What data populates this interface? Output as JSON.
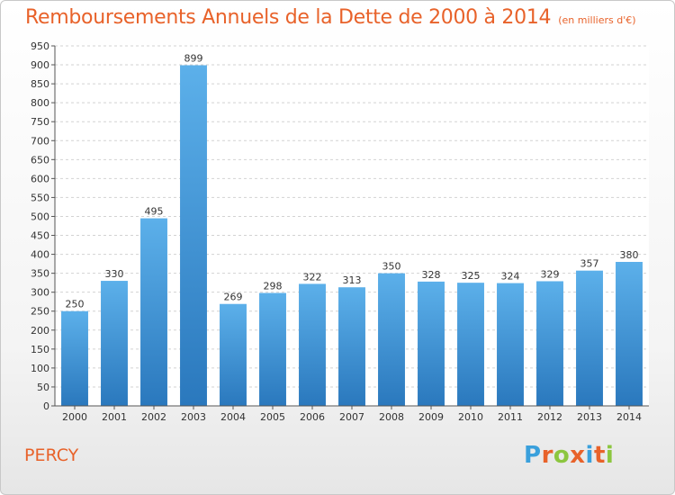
{
  "title": "Remboursements Annuels de la Dette de 2000 à 2014",
  "subtitle": "(en milliers d'€)",
  "city": "PERCY",
  "logo": {
    "text": "Proxiti",
    "letters": [
      "P",
      "r",
      "o",
      "x",
      "i",
      "t",
      "i"
    ],
    "colors": [
      "#3aa0dc",
      "#e8622a",
      "#8cc63f",
      "#e8622a",
      "#3aa0dc",
      "#e8622a",
      "#8cc63f"
    ]
  },
  "colors": {
    "title": "#e8622a",
    "bar_top": "#5cb0ea",
    "bar_bottom": "#2a78bd",
    "grid": "#d2d2d2",
    "axis": "#555555"
  },
  "chart_data": {
    "type": "bar",
    "title": "Remboursements Annuels de la Dette de 2000 à 2014",
    "xlabel": "",
    "ylabel": "",
    "ylim": [
      0,
      950
    ],
    "ytick_step": 50,
    "grid": true,
    "categories": [
      "2000",
      "2001",
      "2002",
      "2003",
      "2004",
      "2005",
      "2006",
      "2007",
      "2008",
      "2009",
      "2010",
      "2011",
      "2012",
      "2013",
      "2014"
    ],
    "values": [
      250,
      330,
      495,
      899,
      269,
      298,
      322,
      313,
      350,
      328,
      325,
      324,
      329,
      357,
      380
    ]
  }
}
